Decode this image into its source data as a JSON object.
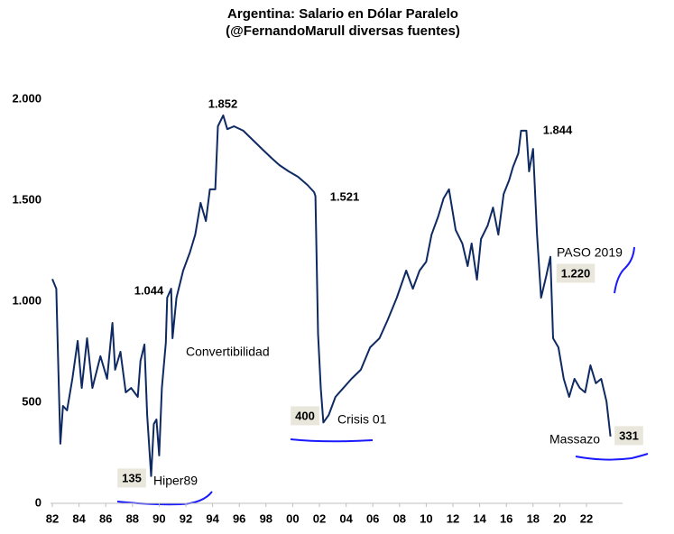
{
  "chart_data": {
    "type": "line",
    "title": "Argentina: Salario en Dólar Paralelo",
    "subtitle": "(@FernandoMarull diversas fuentes)",
    "x": [
      1982.0,
      1982.3,
      1982.4,
      1982.6,
      1982.8,
      1983.1,
      1983.5,
      1983.9,
      1984.2,
      1984.6,
      1985.0,
      1985.6,
      1986.1,
      1986.5,
      1986.7,
      1987.1,
      1987.5,
      1987.9,
      1988.4,
      1988.6,
      1988.9,
      1989.1,
      1989.4,
      1989.6,
      1989.8,
      1990.0,
      1990.2,
      1990.5,
      1990.6,
      1990.9,
      1991.0,
      1991.3,
      1991.8,
      1992.3,
      1992.7,
      1993.1,
      1993.5,
      1993.8,
      1994.2,
      1994.4,
      1994.8,
      1995.1,
      1995.6,
      1996.3,
      1997.0,
      1997.7,
      1998.4,
      1999.0,
      1999.7,
      2000.4,
      2001.1,
      2001.6,
      2001.7,
      2001.9,
      2002.1,
      2002.3,
      2002.7,
      2003.2,
      2003.8,
      2004.4,
      2005.1,
      2005.8,
      2006.5,
      2007.1,
      2007.8,
      2008.5,
      2009.0,
      2009.5,
      2010.0,
      2010.4,
      2010.9,
      2011.3,
      2011.7,
      2012.2,
      2012.7,
      2013.1,
      2013.4,
      2013.8,
      2014.1,
      2014.6,
      2015.0,
      2015.4,
      2015.8,
      2016.2,
      2016.5,
      2016.9,
      2017.1,
      2017.5,
      2017.7,
      2018.0,
      2018.3,
      2018.6,
      2019.0,
      2019.3,
      2019.5,
      2019.9,
      2020.3,
      2020.7,
      2021.1,
      2021.5,
      2021.9,
      2022.3,
      2022.7,
      2023.1,
      2023.5,
      2023.8
    ],
    "series": [
      {
        "name": "Salario en Dólar Paralelo",
        "color": "#0f2a63",
        "values": [
          1110,
          1062,
          795,
          295,
          482,
          460,
          616,
          804,
          571,
          817,
          571,
          728,
          616,
          893,
          661,
          750,
          549,
          571,
          527,
          705,
          786,
          438,
          135,
          393,
          415,
          237,
          571,
          795,
          1018,
          1062,
          817,
          1018,
          1152,
          1241,
          1330,
          1487,
          1397,
          1554,
          1554,
          1866,
          1920,
          1852,
          1866,
          1844,
          1799,
          1754,
          1710,
          1674,
          1643,
          1616,
          1576,
          1540,
          1521,
          839,
          571,
          400,
          438,
          527,
          571,
          616,
          661,
          772,
          817,
          906,
          1018,
          1152,
          1062,
          1152,
          1196,
          1330,
          1420,
          1509,
          1554,
          1353,
          1286,
          1174,
          1286,
          1107,
          1308,
          1375,
          1464,
          1330,
          1531,
          1598,
          1665,
          1732,
          1844,
          1844,
          1643,
          1754,
          1330,
          1018,
          1129,
          1220,
          817,
          772,
          616,
          527,
          616,
          571,
          549,
          683,
          594,
          616,
          504,
          331
        ]
      }
    ],
    "xlim": [
      1982,
      2024.5
    ],
    "xticks": [
      {
        "value": 1982,
        "label": "82"
      },
      {
        "value": 1984,
        "label": "84"
      },
      {
        "value": 1986,
        "label": "86"
      },
      {
        "value": 1988,
        "label": "88"
      },
      {
        "value": 1990,
        "label": "90"
      },
      {
        "value": 1992,
        "label": "92"
      },
      {
        "value": 1994,
        "label": "94"
      },
      {
        "value": 1996,
        "label": "96"
      },
      {
        "value": 1998,
        "label": "98"
      },
      {
        "value": 2000,
        "label": "00"
      },
      {
        "value": 2002,
        "label": "02"
      },
      {
        "value": 2004,
        "label": "04"
      },
      {
        "value": 2006,
        "label": "06"
      },
      {
        "value": 2008,
        "label": "08"
      },
      {
        "value": 2010,
        "label": "10"
      },
      {
        "value": 2012,
        "label": "12"
      },
      {
        "value": 2014,
        "label": "14"
      },
      {
        "value": 2016,
        "label": "16"
      },
      {
        "value": 2018,
        "label": "18"
      },
      {
        "value": 2020,
        "label": "20"
      },
      {
        "value": 2022,
        "label": "22"
      }
    ],
    "ylim": [
      0,
      2000
    ],
    "yticks": [
      0,
      500,
      {
        "value": 1000,
        "label": "1.000"
      },
      {
        "value": 1500,
        "label": "1.500"
      },
      {
        "value": 2000,
        "label": "2.000"
      }
    ],
    "grid": false,
    "annotations": [
      "1.852",
      "1.044",
      "1.521",
      "1.844",
      "1.220",
      "400",
      "331",
      "135",
      "Hiper89",
      "Convertibilidad",
      "Crisis 01",
      "PASO 2019",
      "Massazo"
    ]
  }
}
